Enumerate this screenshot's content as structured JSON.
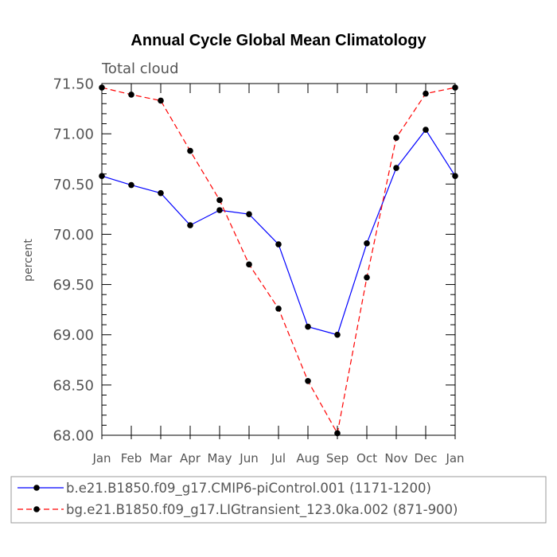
{
  "chart_data": {
    "type": "line",
    "title": "Annual Cycle Global Mean Climatology",
    "subtitle": "Total cloud",
    "xlabel": "",
    "ylabel": "percent",
    "categories": [
      "Jan",
      "Feb",
      "Mar",
      "Apr",
      "May",
      "Jun",
      "Jul",
      "Aug",
      "Sep",
      "Oct",
      "Nov",
      "Dec",
      "Jan"
    ],
    "ylim": [
      68.0,
      71.5
    ],
    "yticks": [
      "68.00",
      "68.50",
      "69.00",
      "69.50",
      "70.00",
      "70.50",
      "71.00",
      "71.50"
    ],
    "grid": false,
    "legend_position": "bottom",
    "series": [
      {
        "name": "b.e21.B1850.f09_g17.CMIP6-piControl.001 (1171-1200)",
        "color": "#0000ff",
        "line_style": "solid",
        "values": [
          70.58,
          70.49,
          70.41,
          70.09,
          70.24,
          70.2,
          69.9,
          69.08,
          69.0,
          69.91,
          70.66,
          71.04,
          70.58
        ]
      },
      {
        "name": "bg.e21.B1850.f09_g17.LIGtransient_123.0ka.002 (871-900)",
        "color": "#ff0000",
        "line_style": "dashed",
        "values": [
          71.46,
          71.39,
          71.33,
          70.83,
          70.34,
          69.7,
          69.26,
          68.54,
          68.02,
          69.57,
          70.96,
          71.4,
          71.46
        ]
      }
    ]
  }
}
